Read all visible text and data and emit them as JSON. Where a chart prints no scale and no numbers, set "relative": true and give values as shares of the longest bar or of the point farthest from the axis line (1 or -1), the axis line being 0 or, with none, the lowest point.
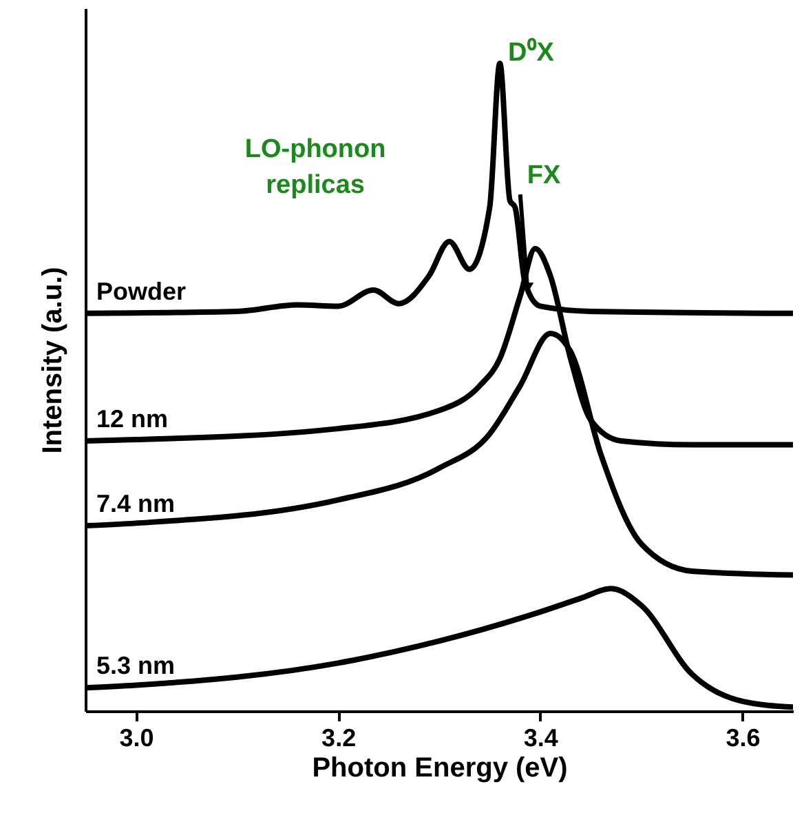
{
  "chart_data": {
    "type": "line",
    "xlabel": "Photon Energy (eV)",
    "ylabel": "Intensity (a.u.)",
    "relative": true,
    "xlim": [
      2.95,
      3.65
    ],
    "xticks": [
      {
        "value": 3.0,
        "label": "3.0"
      },
      {
        "value": 3.2,
        "label": "3.2"
      },
      {
        "value": 3.4,
        "label": "3.4"
      },
      {
        "value": 3.6,
        "label": "3.6"
      }
    ],
    "tick_labels": "x",
    "line_style": "solid",
    "annotations": [
      {
        "text": "D⁰X",
        "x": 3.36,
        "y": 1.0
      },
      {
        "text": "FX",
        "x": 3.387,
        "y": 0.64
      },
      "LO-phonon replicas"
    ],
    "series": [
      {
        "name": "Powder",
        "color": "#000000",
        "x": [
          2.95,
          3.1,
          3.16,
          3.2,
          3.235,
          3.26,
          3.29,
          3.31,
          3.33,
          3.35,
          3.36,
          3.37,
          3.375,
          3.385,
          3.4,
          3.45,
          3.65
        ],
        "values": [
          0.614,
          0.617,
          0.627,
          0.625,
          0.65,
          0.629,
          0.672,
          0.725,
          0.682,
          0.778,
          1.0,
          0.788,
          0.778,
          0.661,
          0.625,
          0.617,
          0.614
        ]
      },
      {
        "name": "12 nm",
        "color": "#000000",
        "x": [
          2.95,
          3.0,
          3.2,
          3.3,
          3.34,
          3.36,
          3.38,
          3.395,
          3.41,
          3.43,
          3.45,
          3.48,
          3.55,
          3.65
        ],
        "values": [
          0.417,
          0.419,
          0.436,
          0.464,
          0.502,
          0.544,
          0.64,
          0.714,
          0.672,
          0.544,
          0.449,
          0.417,
          0.411,
          0.411
        ]
      },
      {
        "name": "7.4 nm",
        "color": "#000000",
        "x": [
          2.95,
          3.0,
          3.2,
          3.3,
          3.35,
          3.38,
          3.41,
          3.43,
          3.46,
          3.5,
          3.55,
          3.65
        ],
        "values": [
          0.286,
          0.29,
          0.326,
          0.375,
          0.428,
          0.502,
          0.583,
          0.555,
          0.396,
          0.258,
          0.216,
          0.21
        ]
      },
      {
        "name": "5.3 nm",
        "color": "#000000",
        "x": [
          2.95,
          3.0,
          3.2,
          3.3,
          3.4,
          3.44,
          3.47,
          3.5,
          3.55,
          3.6,
          3.65
        ],
        "values": [
          0.036,
          0.04,
          0.074,
          0.108,
          0.153,
          0.174,
          0.189,
          0.163,
          0.057,
          0.015,
          0.006
        ]
      }
    ]
  }
}
